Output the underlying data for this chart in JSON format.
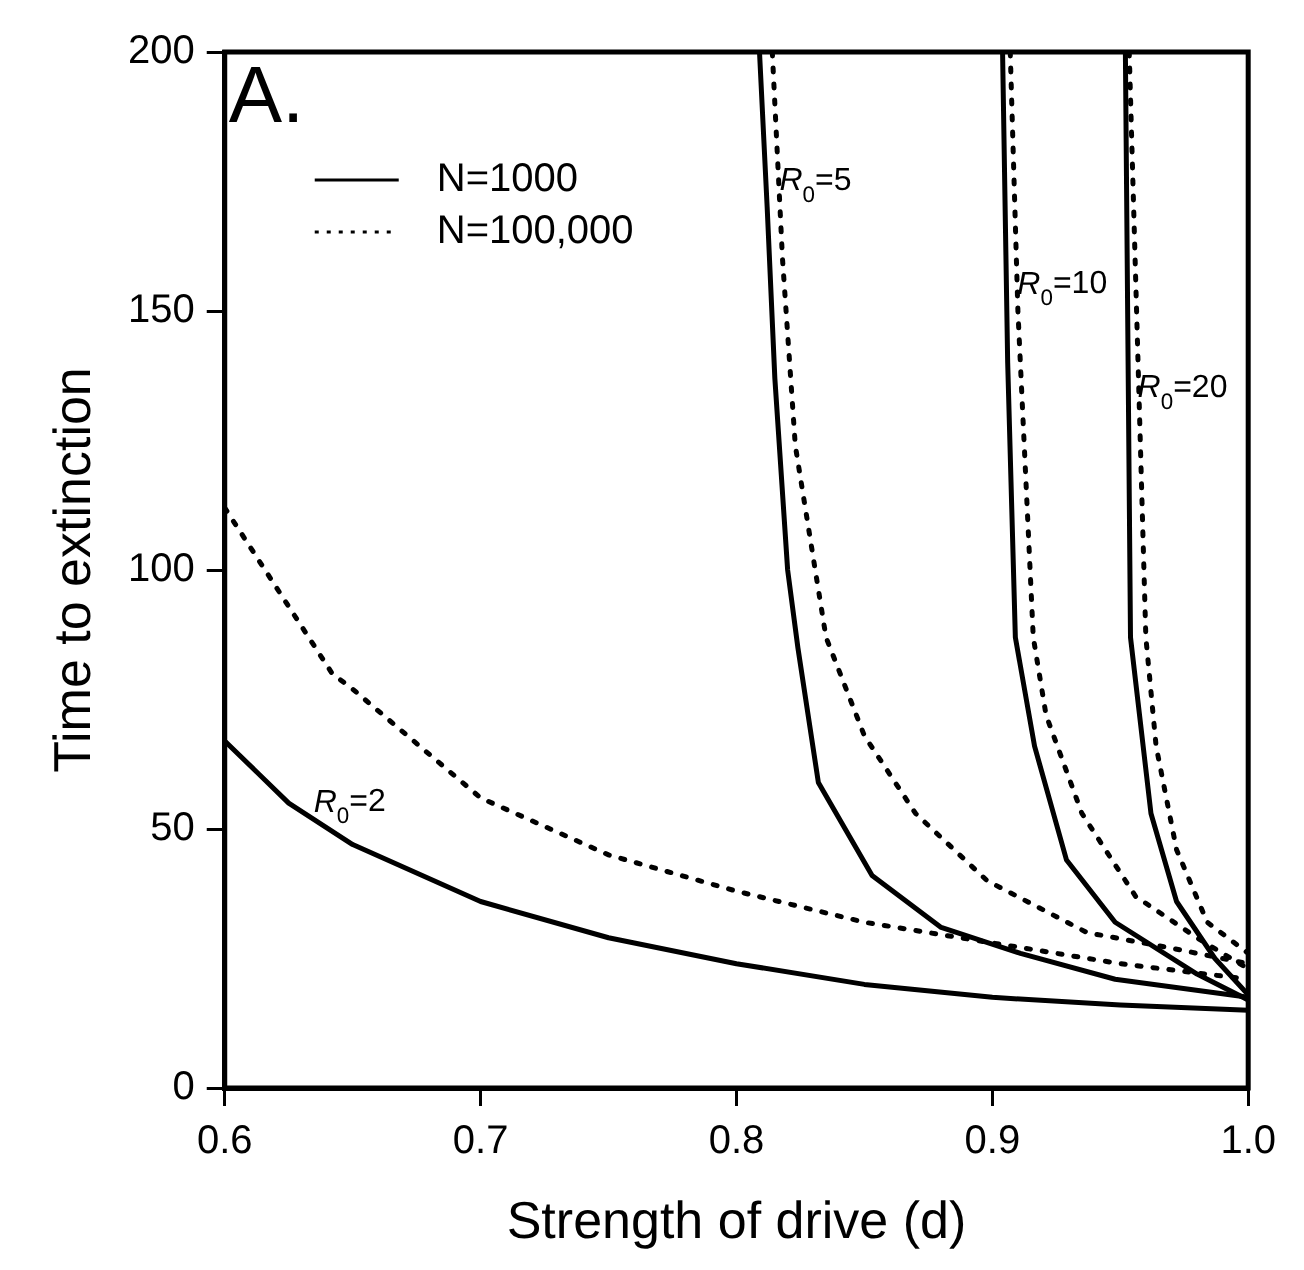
{
  "chart_data": {
    "type": "line",
    "xlabel": "Strength of drive (d)",
    "ylabel": "Time to extinction",
    "xlim": [
      0.6,
      1.0
    ],
    "xticks": [
      0.6,
      0.7,
      0.8,
      0.9,
      {
        "value": 1.0,
        "label": "1.0"
      }
    ],
    "ylim": [
      0,
      200
    ],
    "yticks": [
      0,
      50,
      100,
      150,
      200
    ],
    "grid": false,
    "legend": "top left",
    "marker": "none",
    "annotations": [
      "A.",
      {
        "text": "R$_{0}$=2",
        "x": 0.634,
        "y": 52
      },
      {
        "text": "R$_{0}$=5",
        "x": 0.816,
        "y": 172
      },
      {
        "text": "R$_{0}$=10",
        "x": 0.909,
        "y": 152
      },
      {
        "text": "R$_{0}$=20",
        "x": 0.956,
        "y": 132
      }
    ],
    "series": [
      {
        "name": "N=1000",
        "color": "#000000",
        "line_style": "solid",
        "x": [
          0.6,
          0.625,
          0.65,
          0.7,
          0.75,
          0.8,
          0.85,
          0.9,
          0.95,
          1.0
        ],
        "values": [
          67,
          55,
          47,
          36,
          29,
          24,
          20,
          17.5,
          16,
          15
        ]
      },
      {
        "name": "N=100,000",
        "color": "#000000",
        "line_style": "dotted",
        "x": [
          0.6,
          0.642,
          0.65,
          0.7,
          0.75,
          0.8,
          0.85,
          0.9,
          0.95,
          1.0
        ],
        "values": [
          112,
          80,
          77,
          56,
          45,
          38,
          32,
          28,
          24,
          21
        ]
      },
      {
        "color": "#000000",
        "line_style": "solid",
        "x": [
          0.809,
          0.812,
          0.815,
          0.82,
          0.824,
          0.832,
          0.853,
          0.88,
          0.911,
          0.948,
          1.0
        ],
        "values": [
          200,
          170,
          137,
          100,
          85,
          59,
          41,
          31,
          26,
          21,
          17.5
        ]
      },
      {
        "color": "#000000",
        "line_style": "dotted",
        "x": [
          0.814,
          0.818,
          0.823,
          0.835,
          0.85,
          0.87,
          0.898,
          0.937,
          0.97,
          1.0
        ],
        "values": [
          200,
          160,
          124,
          87,
          68,
          53,
          40,
          30,
          27,
          24
        ]
      },
      {
        "color": "#000000",
        "line_style": "solid",
        "x": [
          0.904,
          0.906,
          0.909,
          0.9165,
          0.929,
          0.948,
          0.98,
          1.0
        ],
        "values": [
          200,
          140,
          87,
          66,
          44,
          32,
          22,
          17
        ]
      },
      {
        "color": "#000000",
        "line_style": "dotted",
        "x": [
          0.907,
          0.91,
          0.916,
          0.921,
          0.935,
          0.956,
          0.98,
          1.0
        ],
        "values": [
          200,
          150,
          87,
          72,
          53,
          37,
          29,
          23
        ]
      },
      {
        "color": "#000000",
        "line_style": "solid",
        "x": [
          0.952,
          0.954,
          0.962,
          0.972,
          0.987,
          1.0
        ],
        "values": [
          200,
          87,
          53,
          36,
          25,
          18
        ]
      },
      {
        "color": "#000000",
        "line_style": "dotted",
        "x": [
          0.9535,
          0.96,
          0.964,
          0.972,
          0.984,
          1.0
        ],
        "values": [
          200,
          87,
          66,
          46,
          32,
          26
        ]
      }
    ]
  }
}
